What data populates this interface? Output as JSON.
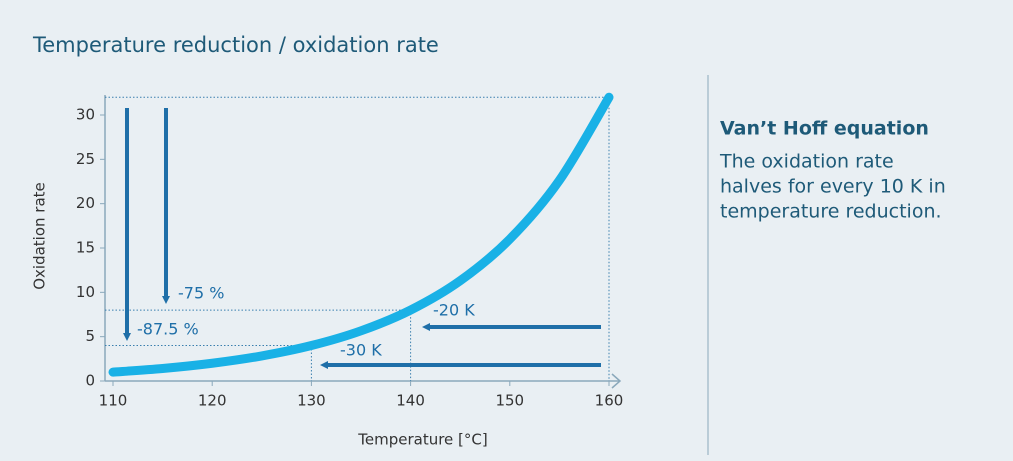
{
  "chart_data": {
    "type": "line",
    "title": "Temperature reduction / oxidation rate",
    "x_label": "Temperature [°C]",
    "y_label": "Oxidation rate",
    "x": [
      110,
      115,
      120,
      125,
      130,
      135,
      140,
      145,
      150,
      155,
      160
    ],
    "series": [
      {
        "name": "Oxidation rate",
        "color": "#19b1e6",
        "values": [
          1,
          1.41,
          2,
          2.83,
          4,
          5.66,
          8,
          11.31,
          16,
          22.63,
          32
        ]
      }
    ],
    "xlim": [
      110,
      160
    ],
    "ylim": [
      0,
      30
    ],
    "xticks": [
      110,
      120,
      130,
      140,
      150,
      160
    ],
    "yticks": [
      0,
      5,
      10,
      15,
      20,
      25,
      30
    ],
    "guides": [
      {
        "x": 160,
        "y": 32
      },
      {
        "x": 140,
        "y": 8
      },
      {
        "x": 130,
        "y": 4
      }
    ],
    "annotations": [
      "-87.5 %",
      "-75 %",
      "-20 K",
      "-30 K"
    ],
    "side_title": "Van’t Hoff equation",
    "side_lines": [
      "The oxidation rate",
      "halves for every 10 K in",
      "temperature reduction."
    ]
  }
}
